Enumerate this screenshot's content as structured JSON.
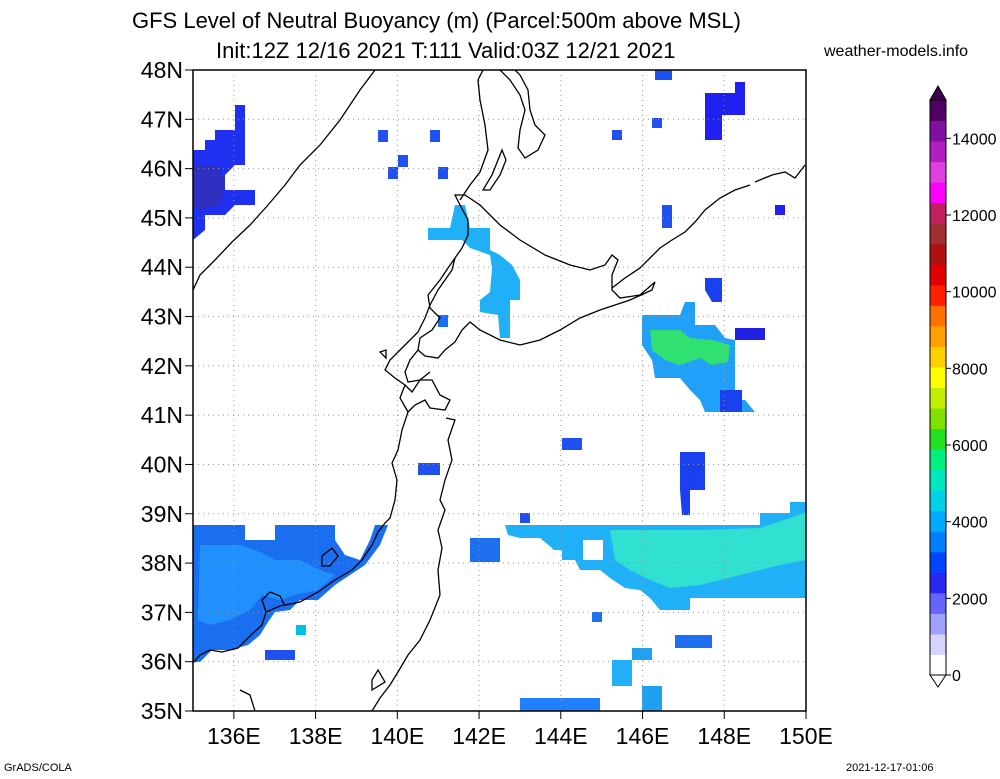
{
  "title_line1": "GFS Level of Neutral Buoyancy (m) (Parcel:500m above MSL)",
  "title_line2": "Init:12Z 12/16 2021 T:111 Valid:03Z 12/21 2021",
  "credit": "weather-models.info",
  "footer_left": "GrADS/COLA",
  "footer_right": "2021-12-17-01:06",
  "map": {
    "lon_range": [
      135,
      150
    ],
    "lat_range": [
      35,
      48
    ],
    "lat_labels": [
      "35N",
      "36N",
      "37N",
      "38N",
      "39N",
      "40N",
      "41N",
      "42N",
      "43N",
      "44N",
      "45N",
      "46N",
      "47N",
      "48N"
    ],
    "lon_labels": [
      "136E",
      "138E",
      "140E",
      "142E",
      "144E",
      "146E",
      "148E",
      "150E"
    ]
  },
  "colorbar": {
    "labels": [
      "0",
      "2000",
      "4000",
      "6000",
      "8000",
      "10000",
      "12000",
      "14000"
    ],
    "colors": [
      "#ffffff",
      "#d4d4ff",
      "#a0a0ff",
      "#6464ff",
      "#2828f0",
      "#0044ff",
      "#0080ff",
      "#00aaff",
      "#00d0e8",
      "#00e8c0",
      "#00f080",
      "#20e020",
      "#80e000",
      "#c0f000",
      "#ffff00",
      "#ffd000",
      "#ffa000",
      "#ff7000",
      "#ff2000",
      "#e00000",
      "#b01010",
      "#a03030",
      "#c02060",
      "#ff00ff",
      "#e040e0",
      "#b020c0",
      "#8010a0",
      "#500060"
    ]
  }
}
